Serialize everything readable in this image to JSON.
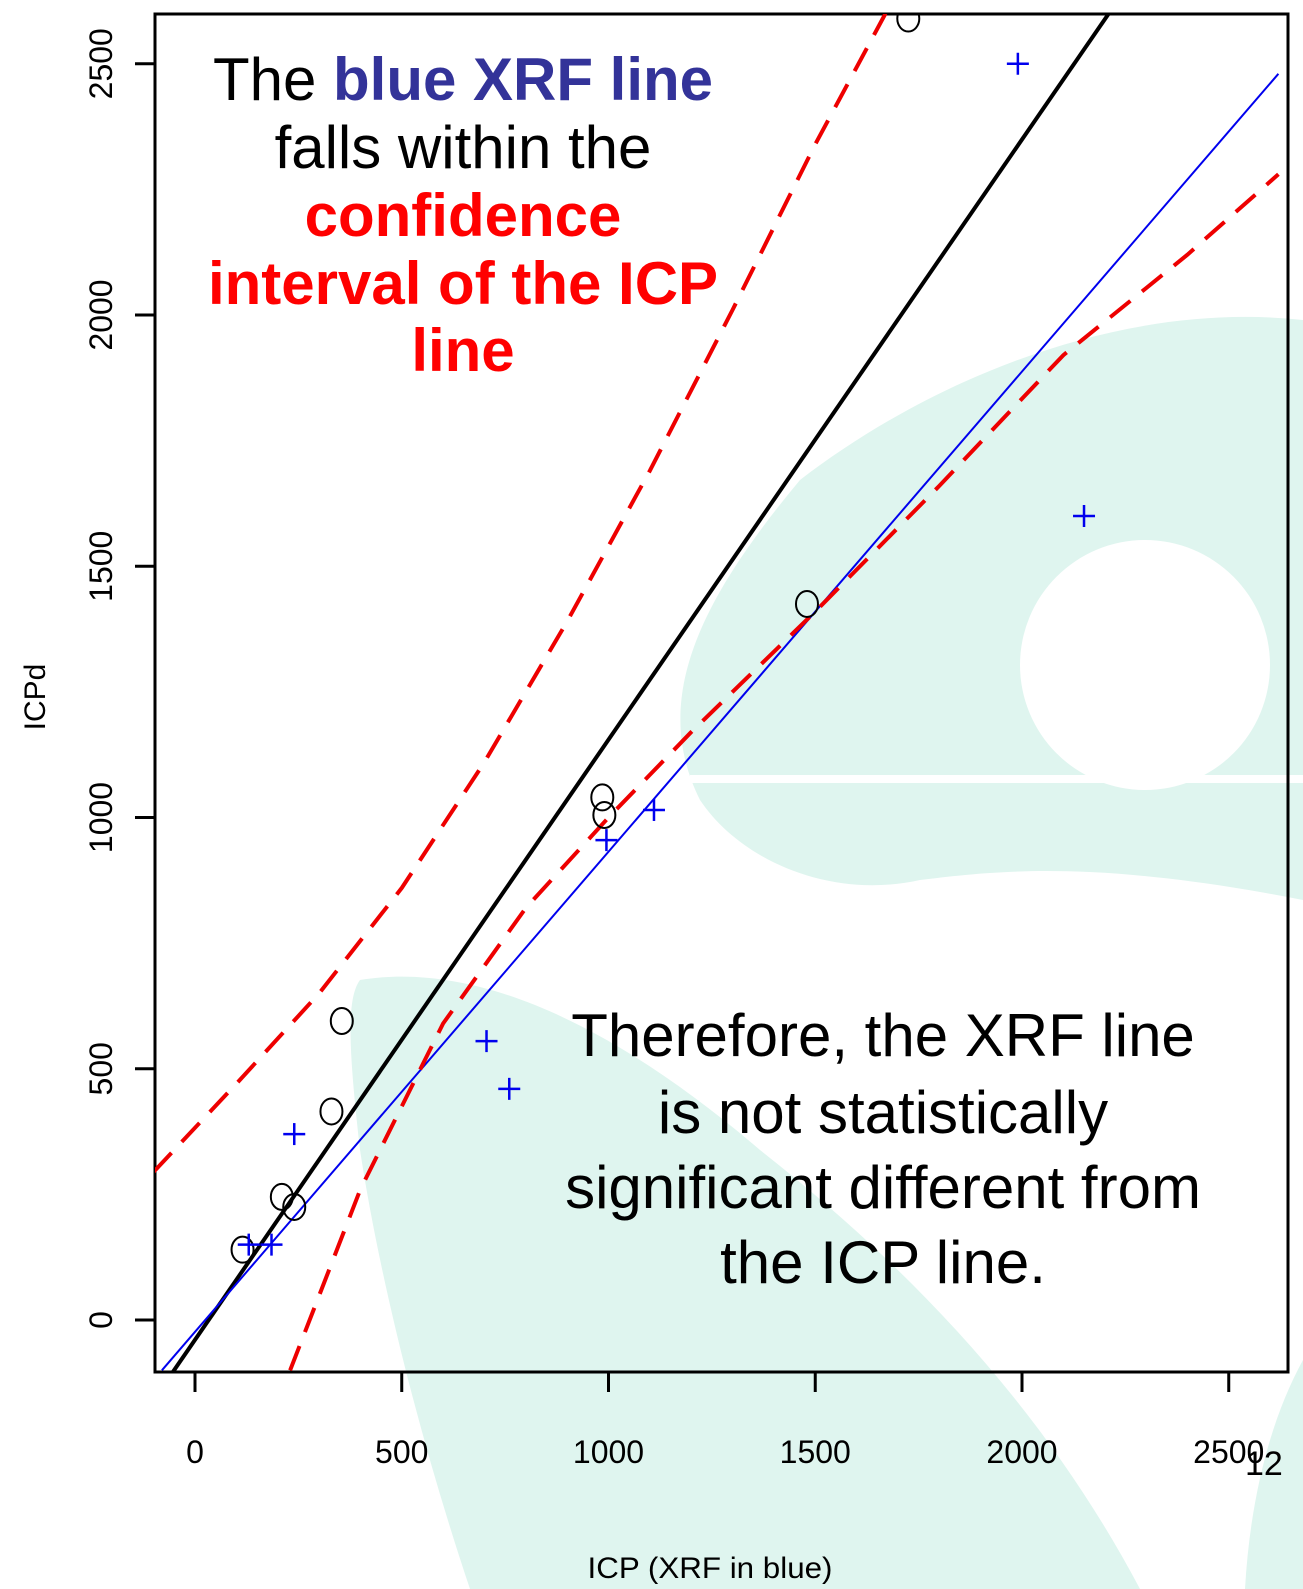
{
  "chart_data": {
    "type": "scatter",
    "title": "",
    "xlabel": "ICP  (XRF in blue)",
    "ylabel": "ICPd",
    "xlim": [
      -100,
      2620
    ],
    "ylim": [
      -100,
      2600
    ],
    "x_ticks": [
      "0",
      "500",
      "1000",
      "1500",
      "2000",
      "2500"
    ],
    "y_ticks": [
      "0",
      "500",
      "1000",
      "1500",
      "2000",
      "2500"
    ],
    "grid": false,
    "series": [
      {
        "marker": "circle",
        "color": "#000000",
        "points": [
          [
            115,
            140
          ],
          [
            210,
            245
          ],
          [
            240,
            225
          ],
          [
            330,
            415
          ],
          [
            355,
            595
          ],
          [
            985,
            1040
          ],
          [
            990,
            1005
          ],
          [
            1480,
            1425
          ],
          [
            1725,
            2590
          ]
        ]
      },
      {
        "marker": "plus",
        "color": "#0000ee",
        "points": [
          [
            130,
            150
          ],
          [
            185,
            150
          ],
          [
            240,
            370
          ],
          [
            705,
            555
          ],
          [
            760,
            460
          ],
          [
            995,
            955
          ],
          [
            1110,
            1015
          ],
          [
            1990,
            2500
          ],
          [
            2150,
            1600
          ]
        ]
      }
    ],
    "lines": [
      {
        "style": "solid",
        "color": "#000000",
        "width": 4,
        "points": [
          [
            -55,
            -105
          ],
          [
            2210,
            2600
          ]
        ]
      },
      {
        "style": "solid",
        "color": "#0000ee",
        "width": 2,
        "points": [
          [
            -80,
            -100
          ],
          [
            2620,
            2480
          ]
        ]
      },
      {
        "style": "dashed",
        "color": "#ee0000",
        "width": 4,
        "points": [
          [
            -100,
            295
          ],
          [
            -60,
            330
          ],
          [
            100,
            470
          ],
          [
            300,
            650
          ],
          [
            500,
            860
          ],
          [
            700,
            1110
          ],
          [
            900,
            1390
          ],
          [
            1100,
            1690
          ],
          [
            1300,
            2010
          ],
          [
            1500,
            2340
          ],
          [
            1670,
            2600
          ]
        ]
      },
      {
        "style": "dashed",
        "color": "#ee0000",
        "width": 4,
        "points": [
          [
            230,
            -100
          ],
          [
            400,
            260
          ],
          [
            600,
            590
          ],
          [
            800,
            820
          ],
          [
            1000,
            1000
          ],
          [
            1200,
            1170
          ],
          [
            1500,
            1410
          ],
          [
            1800,
            1660
          ],
          [
            2100,
            1920
          ],
          [
            2400,
            2120
          ],
          [
            2620,
            2280
          ]
        ]
      }
    ],
    "annotations": {
      "top": {
        "line1_pre": "The ",
        "line1_blue": "blue XRF line",
        "line2": "falls within the",
        "line3": "confidence",
        "line4": "interval of the ICP",
        "line5": "line"
      },
      "bottom": [
        "Therefore, the XRF line",
        "is not statistically",
        "significant different from",
        "the ICP line."
      ],
      "blue_color": "#333399",
      "red_color": "#ff0000"
    },
    "page_number": "12"
  },
  "background": {
    "accent_color": "#dff5ef"
  }
}
